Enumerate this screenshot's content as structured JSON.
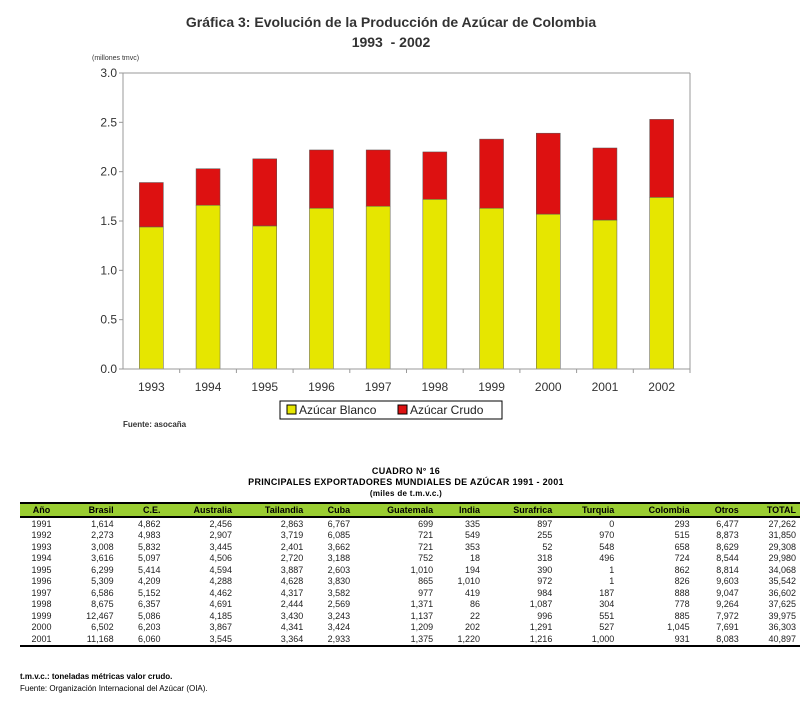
{
  "chart_data": {
    "type": "bar",
    "stacked": true,
    "title": "Gráfica 3: Evolución de la Producción de Azúcar de Colombia",
    "subtitle": "1993  - 2002",
    "ylabel": "(millones tmvc)",
    "xlabel": "",
    "ylim": [
      0,
      3.0
    ],
    "yticks": [
      "0.0",
      "0.5",
      "1.0",
      "1.5",
      "2.0",
      "2.5",
      "3.0"
    ],
    "categories": [
      "1993",
      "1994",
      "1995",
      "1996",
      "1997",
      "1998",
      "1999",
      "2000",
      "2001",
      "2002"
    ],
    "series": [
      {
        "name": "Azúcar Blanco",
        "color": "#e6e600",
        "values": [
          1.44,
          1.66,
          1.45,
          1.63,
          1.65,
          1.72,
          1.63,
          1.57,
          1.51,
          1.74
        ]
      },
      {
        "name": "Azúcar Crudo",
        "color": "#dd1111",
        "values": [
          0.45,
          0.37,
          0.68,
          0.59,
          0.57,
          0.48,
          0.7,
          0.82,
          0.73,
          0.79
        ]
      }
    ],
    "legend": "bottom",
    "grid": false,
    "source": "Fuente: asocaña"
  },
  "table": {
    "number": "CUADRO N° 16",
    "title": "PRINCIPALES EXPORTADORES MUNDIALES DE AZÚCAR 1991 - 2001",
    "unit": "(miles de t.m.v.c.)",
    "columns": [
      "Año",
      "Brasil",
      "C.E.",
      "Australia",
      "Tailandia",
      "Cuba",
      "Guatemala",
      "India",
      "Surafrica",
      "Turquia",
      "Colombia",
      "Otros",
      "TOTAL"
    ],
    "rows": [
      [
        "1991",
        "1,614",
        "4,862",
        "2,456",
        "2,863",
        "6,767",
        "699",
        "335",
        "897",
        "0",
        "293",
        "6,477",
        "27,262"
      ],
      [
        "1992",
        "2,273",
        "4,983",
        "2,907",
        "3,719",
        "6,085",
        "721",
        "549",
        "255",
        "970",
        "515",
        "8,873",
        "31,850"
      ],
      [
        "1993",
        "3,008",
        "5,832",
        "3,445",
        "2,401",
        "3,662",
        "721",
        "353",
        "52",
        "548",
        "658",
        "8,629",
        "29,308"
      ],
      [
        "1994",
        "3,616",
        "5,097",
        "4,506",
        "2,720",
        "3,188",
        "752",
        "18",
        "318",
        "496",
        "724",
        "8,544",
        "29,980"
      ],
      [
        "1995",
        "6,299",
        "5,414",
        "4,594",
        "3,887",
        "2,603",
        "1,010",
        "194",
        "390",
        "1",
        "862",
        "8,814",
        "34,068"
      ],
      [
        "1996",
        "5,309",
        "4,209",
        "4,288",
        "4,628",
        "3,830",
        "865",
        "1,010",
        "972",
        "1",
        "826",
        "9,603",
        "35,542"
      ],
      [
        "1997",
        "6,586",
        "5,152",
        "4,462",
        "4,317",
        "3,582",
        "977",
        "419",
        "984",
        "187",
        "888",
        "9,047",
        "36,602"
      ],
      [
        "1998",
        "8,675",
        "6,357",
        "4,691",
        "2,444",
        "2,569",
        "1,371",
        "86",
        "1,087",
        "304",
        "778",
        "9,264",
        "37,625"
      ],
      [
        "1999",
        "12,467",
        "5,086",
        "4,185",
        "3,430",
        "3,243",
        "1,137",
        "22",
        "996",
        "551",
        "885",
        "7,972",
        "39,975"
      ],
      [
        "2000",
        "6,502",
        "6,203",
        "3,867",
        "4,341",
        "3,424",
        "1,209",
        "202",
        "1,291",
        "527",
        "1,045",
        "7,691",
        "36,303"
      ],
      [
        "2001",
        "11,168",
        "6,060",
        "3,545",
        "3,364",
        "2,933",
        "1,375",
        "1,220",
        "1,216",
        "1,000",
        "931",
        "8,083",
        "40,897"
      ]
    ],
    "note": "t.m.v.c.: toneladas métricas valor crudo.",
    "source": "Fuente: Organización Internacional del Azúcar (OIA)."
  }
}
